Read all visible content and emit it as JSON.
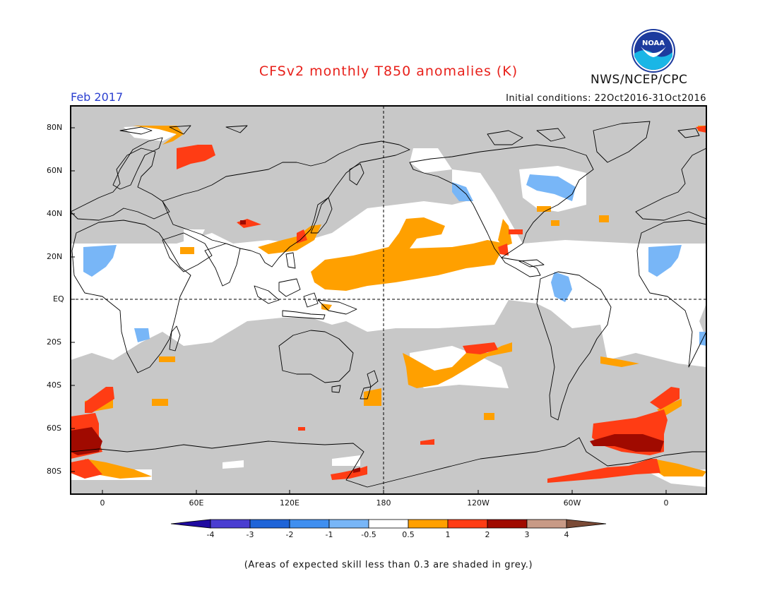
{
  "header": {
    "title": "CFSv2 monthly T850 anomalies (K)",
    "agency": "NWS/NCEP/CPC",
    "month": "Feb 2017",
    "initial_conditions": "Initial conditions: 22Oct2016-31Oct2016",
    "logo_text": "NOAA"
  },
  "map": {
    "projection": "equirectangular",
    "lat_labels": [
      "80N",
      "60N",
      "40N",
      "20N",
      "EQ",
      "20S",
      "40S",
      "60S",
      "80S"
    ],
    "lon_labels": [
      "0",
      "60E",
      "120E",
      "180",
      "120W",
      "60W",
      "0"
    ],
    "background_color": "#c8c8c8",
    "no_signal_color": "#ffffff",
    "reference_lines": [
      "equator",
      "dateline"
    ]
  },
  "colorbar": {
    "ticks": [
      "-4",
      "-3",
      "-2",
      "-1",
      "-0.5",
      "0.5",
      "1",
      "2",
      "3",
      "4"
    ],
    "colors": [
      "#1f0aa0",
      "#4a3dd1",
      "#1e64d8",
      "#3f8ff0",
      "#78b6f7",
      "#ffffff",
      "#ffa000",
      "#ff3c14",
      "#a00a00",
      "#c89a86",
      "#7a4a36"
    ]
  },
  "footnote": "(Areas of expected skill less than 0.3 are shaded in grey.)"
}
